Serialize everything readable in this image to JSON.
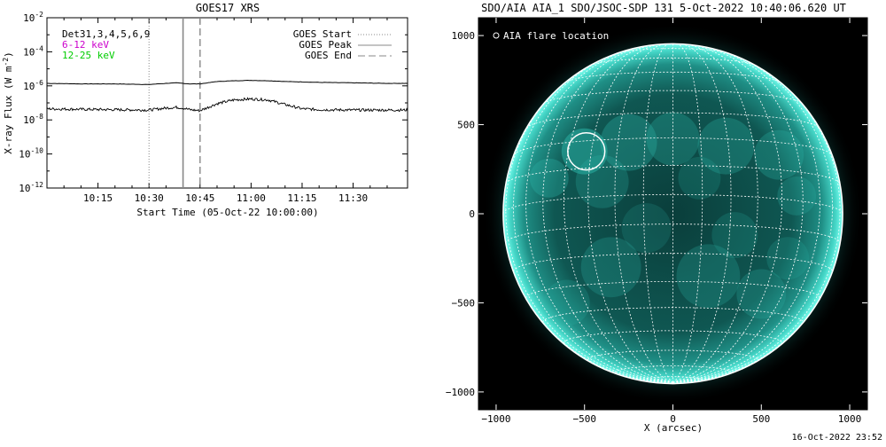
{
  "left_panel": {
    "title": "GOES17 XRS",
    "ylabel": "X-ray Flux (W m",
    "ylabel_sup": "-2",
    "ylabel_close": ")",
    "xlabel": "Start Time (05-Oct-22 10:00:00)",
    "channel_lines": [
      {
        "text": "Det31,3,4,5,6,9",
        "color": "#000000"
      },
      {
        "text": "6-12 keV",
        "color": "#cc00cc"
      },
      {
        "text": "12-25 keV",
        "color": "#00cc00"
      }
    ],
    "legend": [
      {
        "label": "GOES Start",
        "style": "dotted"
      },
      {
        "label": "GOES Peak",
        "style": "solid"
      },
      {
        "label": "GOES End",
        "style": "dashed"
      }
    ]
  },
  "right_panel": {
    "title": "SDO/AIA AIA_1 SDO/JSOC-SDP 131  5-Oct-2022 10:40:06.620 UT",
    "xlabel": "X (arcsec)",
    "legend_label": "AIA flare location",
    "flare_location_arcsec": {
      "x": -490,
      "y": 350,
      "radius": 105
    },
    "solar_radius_arcsec": 960,
    "b0_deg": -6.5,
    "colors": {
      "disk": "#0b4a46",
      "limb": "#5fffe8",
      "background": "#000000",
      "grid": "#ffffff"
    }
  },
  "timestamp": "16-Oct-2022 23:52",
  "chart_data": [
    {
      "type": "line",
      "title": "GOES17 XRS",
      "xlabel": "Start Time (05-Oct-22 10:00:00)",
      "ylabel": "X-ray Flux (W m^-2)",
      "yscale": "log",
      "xlim": [
        "10:00",
        "11:46"
      ],
      "ylim": [
        1e-12,
        0.01
      ],
      "x_ticks": [
        "10:15",
        "10:30",
        "10:45",
        "11:00",
        "11:15",
        "11:30"
      ],
      "y_ticks": [
        0.01,
        0.0001,
        1e-06,
        1e-08,
        1e-10,
        1e-12
      ],
      "series": [
        {
          "name": "",
          "x": [
            "10:00",
            "10:10",
            "10:20",
            "10:30",
            "10:35",
            "10:38",
            "10:40",
            "10:42",
            "10:45",
            "10:50",
            "10:55",
            "11:00",
            "11:05",
            "11:10",
            "11:20",
            "11:30",
            "11:40",
            "11:46"
          ],
          "values": [
            1.4e-06,
            1.3e-06,
            1.3e-06,
            1.2e-06,
            1.4e-06,
            1.5e-06,
            1.4e-06,
            1.3e-06,
            1.3e-06,
            1.8e-06,
            2e-06,
            2.1e-06,
            2e-06,
            1.8e-06,
            1.6e-06,
            1.5e-06,
            1.4e-06,
            1.4e-06
          ]
        },
        {
          "name": "",
          "x": [
            "10:00",
            "10:10",
            "10:20",
            "10:30",
            "10:35",
            "10:38",
            "10:40",
            "10:42",
            "10:45",
            "10:50",
            "10:55",
            "11:00",
            "11:05",
            "11:10",
            "11:15",
            "11:20",
            "11:30",
            "11:40",
            "11:46"
          ],
          "values": [
            4.5e-08,
            4.2e-08,
            4e-08,
            3.8e-08,
            5e-08,
            5.5e-08,
            5e-08,
            4e-08,
            3.5e-08,
            9e-08,
            1.5e-07,
            1.7e-07,
            1.5e-07,
            8e-08,
            4.5e-08,
            4e-08,
            3.8e-08,
            3.8e-08,
            3.8e-08
          ],
          "noisy": true
        }
      ],
      "events": {
        "goes_start": "10:30",
        "goes_peak": "10:40",
        "goes_end": "10:45"
      }
    },
    {
      "type": "image",
      "title": "SDO/AIA AIA_1 SDO/JSOC-SDP 131  5-Oct-2022 10:40:06.620 UT",
      "xlabel": "X (arcsec)",
      "xlim": [
        -1100,
        1100
      ],
      "ylim": [
        -1100,
        1100
      ],
      "x_ticks": [
        -1000,
        -500,
        0,
        500,
        1000
      ],
      "y_ticks": [
        1000,
        500,
        0,
        -500,
        -1000
      ]
    }
  ]
}
